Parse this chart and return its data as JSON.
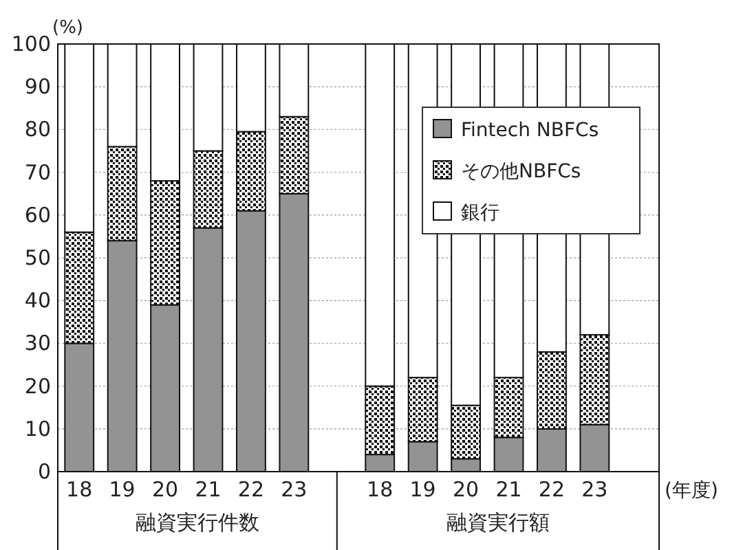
{
  "chart_data": {
    "type": "bar",
    "stacked": true,
    "ylabel": "(%)",
    "xlabel": "(年度)",
    "categories": [
      "18",
      "19",
      "20",
      "21",
      "22",
      "23",
      null,
      "18",
      "19",
      "20",
      "21",
      "22",
      "23"
    ],
    "series": [
      {
        "name": "Fintech NBFCs",
        "color": "#939393",
        "values": [
          30,
          54,
          39,
          57,
          61,
          65,
          null,
          4,
          7,
          3,
          8,
          10,
          11
        ]
      },
      {
        "name": "その他NBFCs",
        "color": "#111111",
        "values": [
          26,
          22,
          29,
          18,
          18.5,
          18,
          null,
          16,
          15,
          12.5,
          14,
          18,
          21
        ]
      },
      {
        "name": "銀行",
        "color": "#ffffff",
        "values": [
          44,
          24,
          32,
          25,
          20.5,
          17,
          null,
          80,
          78,
          84.5,
          78,
          72,
          68
        ]
      }
    ],
    "ylim": [
      0,
      100
    ],
    "yticks": [
      0,
      10,
      20,
      30,
      40,
      50,
      60,
      70,
      80,
      90,
      100
    ],
    "grid": "y",
    "legend": "top right",
    "annotations": [
      "融資実行件数",
      "融資実行額"
    ]
  }
}
